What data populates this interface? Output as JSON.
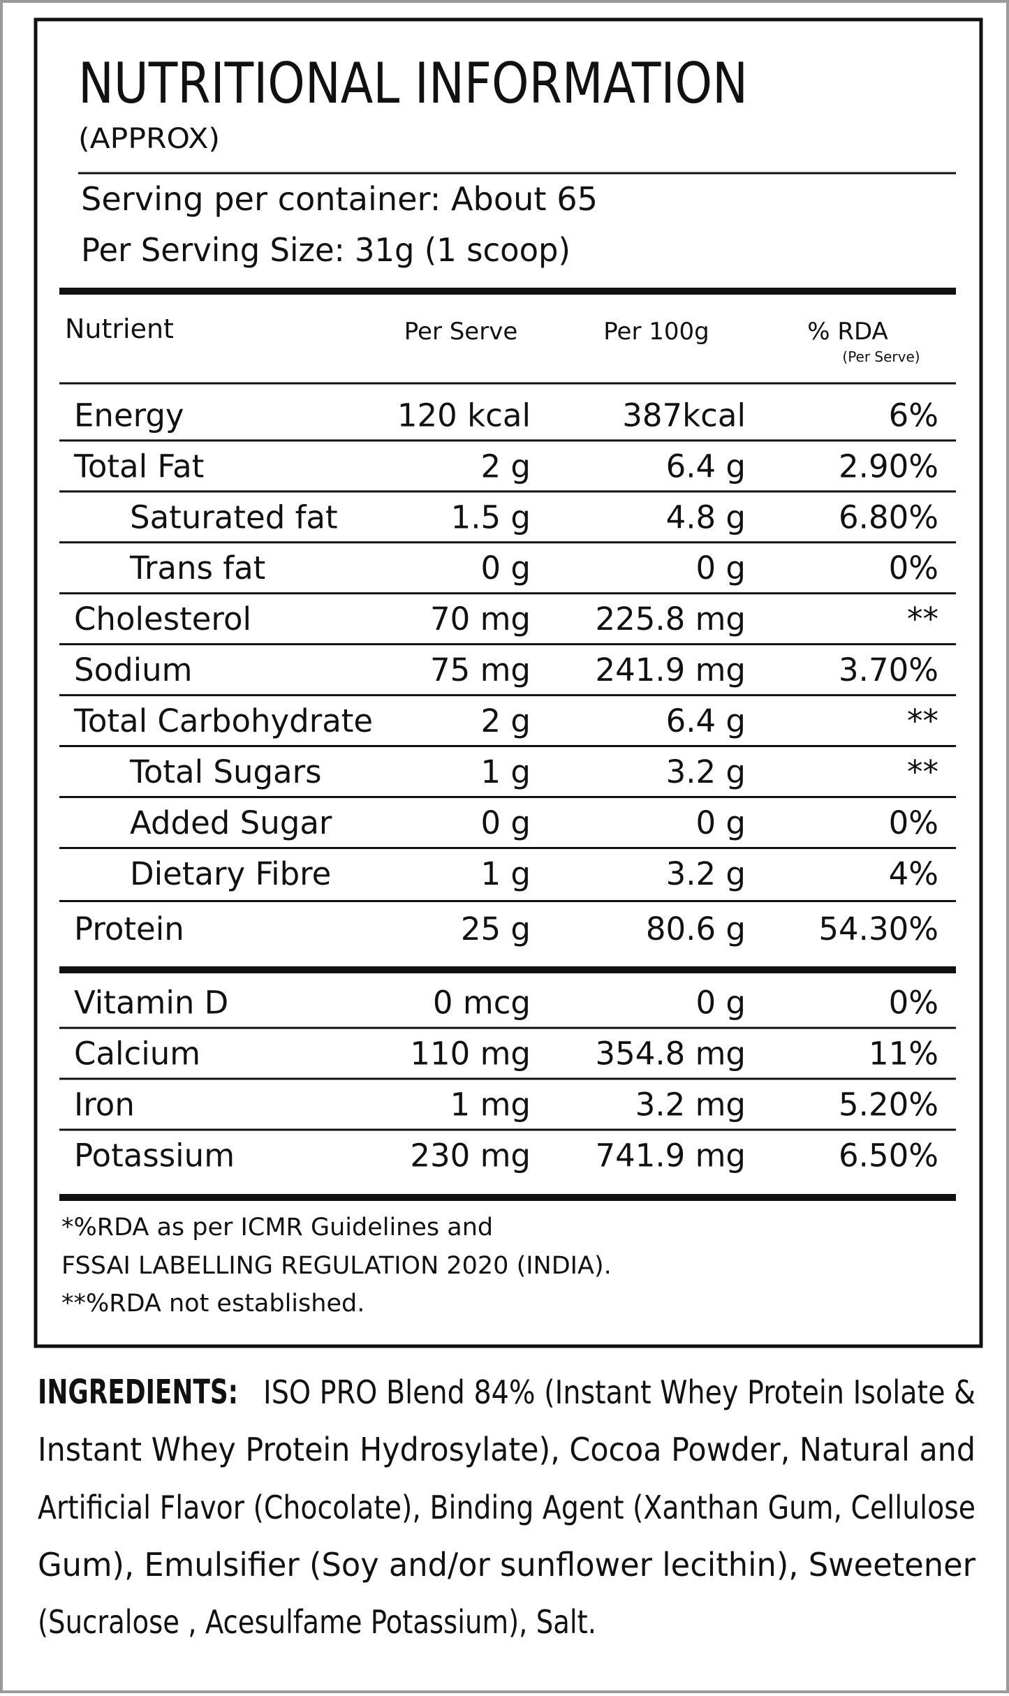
{
  "header": {
    "title": "NUTRITIONAL INFORMATION",
    "subtitle": "(APPROX)",
    "servings": "Serving per container: About 65",
    "serving_size": "Per Serving Size: 31g (1 scoop)"
  },
  "table": {
    "columns": [
      "Nutrient",
      "Per Serve",
      "Per 100g",
      "% RDA"
    ],
    "rda_note": "(Per Serve)",
    "rows": [
      [
        "Energy",
        "120 kcal",
        "387kcal",
        "6%"
      ],
      [
        "Total Fat",
        "2 g",
        "6.4 g",
        "2.90%"
      ],
      [
        "Saturated fat",
        "1.5 g",
        "4.8 g",
        "6.80%"
      ],
      [
        "Trans fat",
        "0 g",
        "0 g",
        "0%"
      ],
      [
        "Cholesterol",
        "70 mg",
        "225.8 mg",
        "**"
      ],
      [
        "Sodium",
        "75 mg",
        "241.9 mg",
        "3.70%"
      ],
      [
        "Total Carbohydrate",
        "2 g",
        "6.4 g",
        "**"
      ],
      [
        "Total Sugars",
        "1 g",
        "3.2 g",
        "**"
      ],
      [
        "Added Sugar",
        "0 g",
        "0 g",
        "0%"
      ],
      [
        "Dietary Fibre",
        "1 g",
        "3.2 g",
        "4%"
      ],
      [
        "Protein",
        "25 g",
        "80.6 g",
        "54.30%"
      ],
      [
        "Vitamin D",
        "0 mcg",
        "0 g",
        "0%"
      ],
      [
        "Calcium",
        "110 mg",
        "354.8 mg",
        "11%"
      ],
      [
        "Iron",
        "1 mg",
        "3.2 mg",
        "5.20%"
      ],
      [
        "Potassium",
        "230 mg",
        "741.9 mg",
        "6.50%"
      ]
    ]
  },
  "footnotes": [
    "*%RDA as per ICMR Guidelines and",
    "FSSAI LABELLING REGULATION 2020 (INDIA).",
    "**%RDA not established."
  ],
  "ingredients": {
    "label": "INGREDIENTS:",
    "lines": [
      "ISO PRO Blend 84% (Instant Whey Protein Isolate &",
      "Instant Whey Protein Hydrosylate), Cocoa Powder, Natural and",
      "Artificial Flavor (Chocolate), Binding Agent (Xanthan Gum, Cellulose",
      "Gum), Emulsifier (Soy and/or sunflower lecithin), Sweetener",
      "(Sucralose , Acesulfame Potassium), Salt."
    ]
  }
}
